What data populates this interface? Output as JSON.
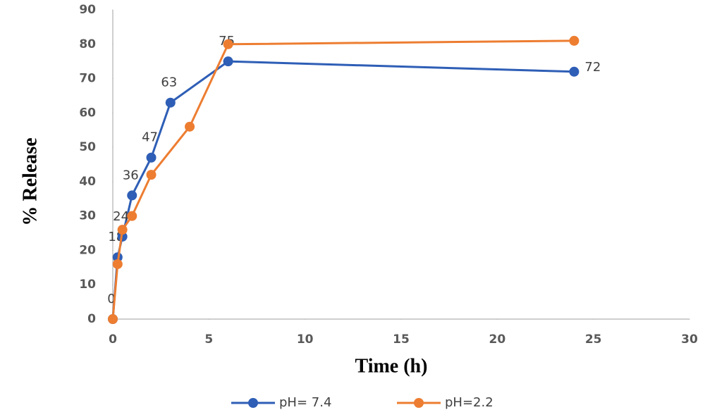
{
  "chart_data": {
    "type": "line",
    "x_label": "Time (h)",
    "y_label": "% Release",
    "xlim": [
      0,
      30
    ],
    "xticks": [
      0,
      5,
      10,
      15,
      20,
      25,
      30
    ],
    "ylim": [
      0,
      90
    ],
    "yticks": [
      0,
      10,
      20,
      30,
      40,
      50,
      60,
      70,
      80,
      90
    ],
    "grid": false,
    "legend": "bottom",
    "series": [
      {
        "name": "pH= 7.4",
        "color": "#2e5eb6",
        "data_labels": true,
        "x": [
          0,
          0.25,
          0.5,
          1,
          2,
          3,
          6,
          24
        ],
        "values": [
          0,
          18,
          24,
          36,
          47,
          63,
          75,
          72
        ]
      },
      {
        "name": "pH=2.2",
        "color": "#ed7d31",
        "data_labels": false,
        "x": [
          0,
          0.25,
          0.5,
          1,
          2,
          4,
          6,
          24
        ],
        "values": [
          0,
          16,
          26,
          30,
          42,
          56,
          80,
          81
        ]
      }
    ]
  }
}
